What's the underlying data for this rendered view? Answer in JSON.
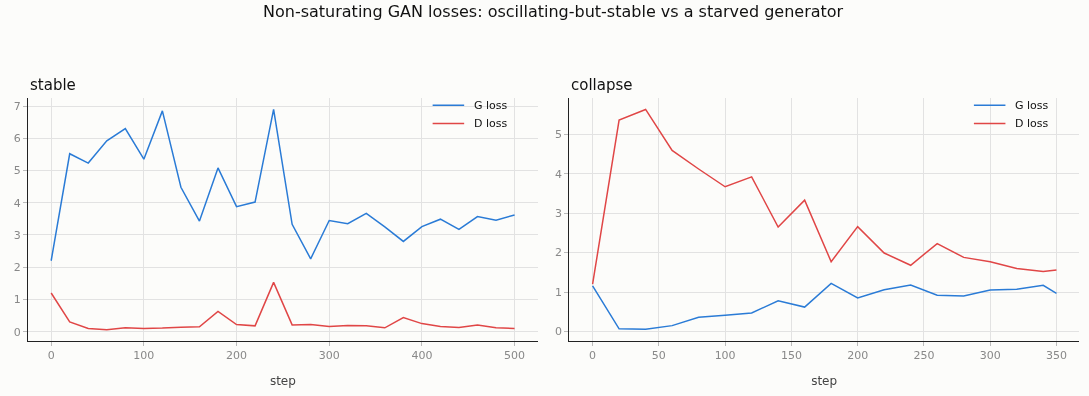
{
  "chart_data": [
    {
      "type": "line",
      "title": "stable",
      "xlabel": "step",
      "x": [
        0,
        20,
        40,
        60,
        80,
        100,
        120,
        140,
        160,
        180,
        200,
        220,
        240,
        260,
        280,
        300,
        320,
        340,
        360,
        380,
        400,
        420,
        440,
        460,
        480,
        500
      ],
      "series": [
        {
          "name": "G loss",
          "color": "#2a7bd6",
          "values": [
            2.2,
            5.52,
            5.23,
            5.92,
            6.3,
            5.35,
            6.85,
            4.48,
            3.43,
            5.08,
            3.88,
            4.02,
            6.9,
            3.33,
            2.26,
            3.45,
            3.35,
            3.67,
            3.25,
            2.8,
            3.26,
            3.49,
            3.17,
            3.57,
            3.46,
            3.62
          ]
        },
        {
          "name": "D loss",
          "color": "#e04646",
          "values": [
            1.2,
            0.3,
            0.1,
            0.06,
            0.12,
            0.1,
            0.11,
            0.14,
            0.15,
            0.63,
            0.22,
            0.18,
            1.53,
            0.21,
            0.22,
            0.16,
            0.19,
            0.18,
            0.12,
            0.44,
            0.25,
            0.16,
            0.13,
            0.21,
            0.12,
            0.1
          ]
        }
      ],
      "annotations": [
        "Non-saturating GAN losses: oscillating-but-stable vs a starved generator"
      ],
      "xlim": [
        -25,
        525
      ],
      "xticks": [
        0,
        100,
        200,
        300,
        400,
        500
      ],
      "ylim": [
        -0.29,
        7.25
      ],
      "yticks": [
        0,
        1,
        2,
        3,
        4,
        5,
        6,
        7
      ],
      "grid": true,
      "legend": "top right"
    },
    {
      "type": "line",
      "title": "collapse",
      "xlabel": "step",
      "x": [
        0,
        20,
        40,
        60,
        80,
        100,
        120,
        140,
        160,
        180,
        200,
        220,
        240,
        260,
        280,
        300,
        320,
        340,
        350
      ],
      "series": [
        {
          "name": "G loss",
          "color": "#2a7bd6",
          "values": [
            1.16,
            0.07,
            0.06,
            0.15,
            0.36,
            0.41,
            0.47,
            0.78,
            0.62,
            1.22,
            0.85,
            1.06,
            1.18,
            0.92,
            0.9,
            1.05,
            1.07,
            1.17,
            0.97
          ]
        },
        {
          "name": "D loss",
          "color": "#e04646",
          "values": [
            1.2,
            5.36,
            5.63,
            4.59,
            4.12,
            3.67,
            3.92,
            2.65,
            3.33,
            1.77,
            2.66,
            1.99,
            1.68,
            2.23,
            1.88,
            1.77,
            1.6,
            1.52,
            1.56
          ]
        }
      ],
      "xlim": [
        -17.6,
        367
      ],
      "xticks": [
        0,
        50,
        100,
        150,
        200,
        250,
        300,
        350
      ],
      "ylim": [
        -0.24,
        5.92
      ],
      "yticks": [
        0,
        1,
        2,
        3,
        4,
        5
      ],
      "grid": true,
      "legend": "top right"
    }
  ]
}
